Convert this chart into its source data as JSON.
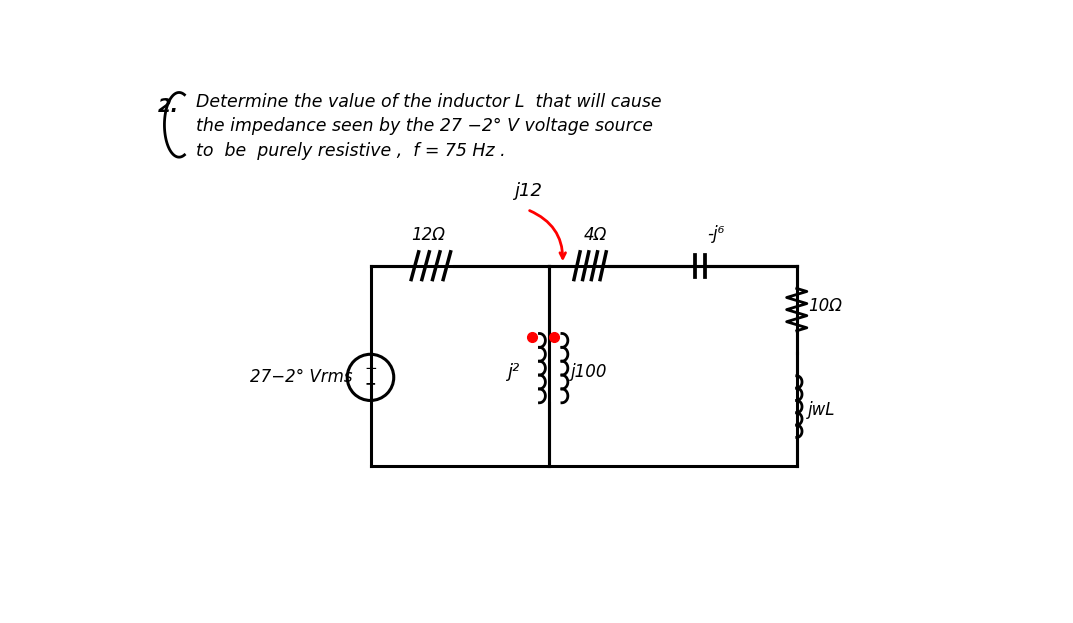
{
  "bg_color": "#ffffff",
  "text_color": "#000000",
  "red_color": "#cc0000",
  "title_line1": "Determine the value of the inductor L  that will cause",
  "title_line2": "the impedance seen by the 27 −2° V voltage source",
  "title_line3": "to  be  purely resistive ,  f = 75 Hz .",
  "problem_num": "2.",
  "source_label": "27−2° Vrms",
  "comp_12ohm": "12Ω",
  "comp_4ohm": "4Ω",
  "comp_j6": "-j⁶",
  "comp_j2": "j²",
  "comp_j100": "j100",
  "comp_10ohm": "10Ω",
  "comp_jwL": "jwL",
  "comp_j12": "j12",
  "figsize": [
    10.73,
    6.23
  ],
  "dpi": 100
}
